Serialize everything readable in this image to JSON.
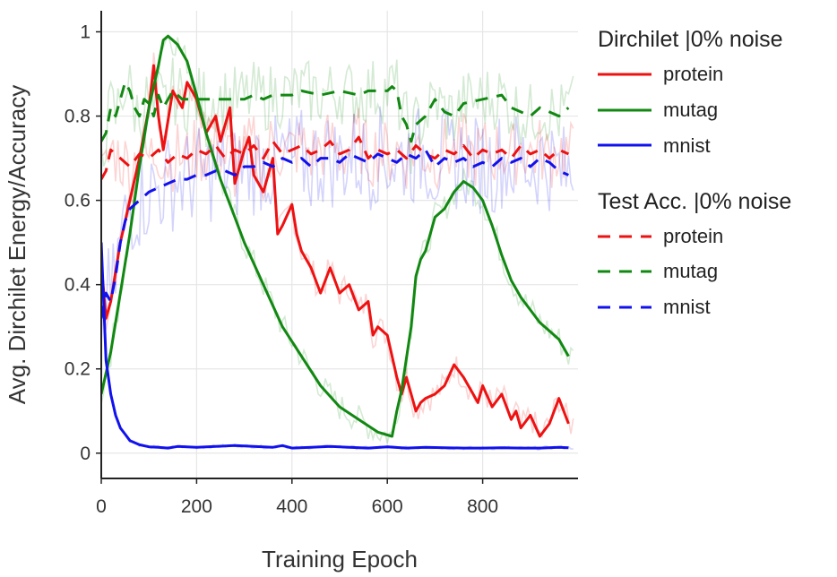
{
  "chart_data": {
    "type": "line",
    "xlabel": "Training Epoch",
    "ylabel": "Avg. Dirchilet Energy/Accuracy",
    "xlim": [
      0,
      1000
    ],
    "ylim": [
      -0.06,
      1.05
    ],
    "x_ticks": [
      0,
      200,
      400,
      600,
      800
    ],
    "y_ticks": [
      0,
      0.2,
      0.4,
      0.6,
      0.8,
      1
    ],
    "x_tick_labels": [
      "0",
      "200",
      "400",
      "600",
      "800"
    ],
    "y_tick_labels": [
      "0",
      "0.2",
      "0.4",
      "0.6",
      "0.8",
      "1"
    ],
    "grid": true,
    "colors": {
      "protein": "#ee1111",
      "mutag": "#118811",
      "mnist": "#1111ee"
    },
    "legend": {
      "position": "right",
      "groups": [
        {
          "title": "Dirchilet |0% noise",
          "style": "solid",
          "entries": [
            "protein",
            "mutag",
            "mnist"
          ]
        },
        {
          "title": "Test Acc. |0% noise",
          "style": "dashed",
          "entries": [
            "protein",
            "mutag",
            "mnist"
          ]
        }
      ]
    },
    "series": [
      {
        "name": "protein",
        "group": "Dirchilet |0% noise",
        "style": "solid",
        "x": [
          0,
          10,
          20,
          40,
          60,
          80,
          100,
          110,
          120,
          130,
          150,
          170,
          180,
          200,
          220,
          240,
          250,
          260,
          270,
          280,
          290,
          300,
          310,
          320,
          340,
          360,
          370,
          380,
          400,
          410,
          420,
          440,
          460,
          470,
          480,
          500,
          520,
          540,
          560,
          570,
          580,
          600,
          620,
          630,
          640,
          650,
          660,
          670,
          680,
          700,
          720,
          740,
          760,
          780,
          790,
          800,
          820,
          840,
          860,
          870,
          880,
          900,
          920,
          940,
          960,
          980
        ],
        "y": [
          0.45,
          0.32,
          0.36,
          0.5,
          0.6,
          0.7,
          0.82,
          0.92,
          0.8,
          0.72,
          0.86,
          0.82,
          0.88,
          0.84,
          0.76,
          0.8,
          0.74,
          0.78,
          0.82,
          0.64,
          0.68,
          0.72,
          0.75,
          0.66,
          0.62,
          0.7,
          0.52,
          0.54,
          0.59,
          0.52,
          0.48,
          0.44,
          0.38,
          0.41,
          0.44,
          0.38,
          0.4,
          0.34,
          0.36,
          0.28,
          0.3,
          0.28,
          0.18,
          0.14,
          0.18,
          0.14,
          0.1,
          0.12,
          0.13,
          0.14,
          0.16,
          0.21,
          0.18,
          0.14,
          0.12,
          0.16,
          0.11,
          0.14,
          0.08,
          0.1,
          0.06,
          0.09,
          0.04,
          0.07,
          0.13,
          0.07
        ]
      },
      {
        "name": "mutag",
        "group": "Dirchilet |0% noise",
        "style": "solid",
        "x": [
          0,
          20,
          40,
          60,
          80,
          100,
          120,
          130,
          140,
          150,
          160,
          180,
          200,
          220,
          250,
          280,
          300,
          340,
          380,
          420,
          460,
          500,
          540,
          580,
          610,
          620,
          630,
          650,
          660,
          670,
          680,
          700,
          720,
          740,
          760,
          780,
          800,
          820,
          840,
          860,
          880,
          900,
          920,
          940,
          960,
          980
        ],
        "y": [
          0.14,
          0.24,
          0.38,
          0.52,
          0.68,
          0.82,
          0.92,
          0.98,
          0.99,
          0.98,
          0.97,
          0.93,
          0.85,
          0.76,
          0.65,
          0.56,
          0.5,
          0.4,
          0.3,
          0.23,
          0.16,
          0.11,
          0.08,
          0.05,
          0.04,
          0.1,
          0.15,
          0.3,
          0.42,
          0.46,
          0.48,
          0.56,
          0.58,
          0.62,
          0.645,
          0.63,
          0.6,
          0.54,
          0.47,
          0.41,
          0.37,
          0.34,
          0.31,
          0.29,
          0.27,
          0.23
        ]
      },
      {
        "name": "mnist",
        "group": "Dirchilet |0% noise",
        "style": "solid",
        "x": [
          0,
          10,
          20,
          30,
          40,
          50,
          60,
          80,
          100,
          120,
          140,
          160,
          180,
          200,
          240,
          280,
          320,
          360,
          380,
          400,
          440,
          480,
          520,
          560,
          600,
          640,
          680,
          720,
          760,
          800,
          840,
          880,
          920,
          960,
          980
        ],
        "y": [
          0.5,
          0.22,
          0.14,
          0.09,
          0.06,
          0.045,
          0.03,
          0.02,
          0.015,
          0.014,
          0.012,
          0.016,
          0.015,
          0.014,
          0.016,
          0.018,
          0.016,
          0.014,
          0.018,
          0.012,
          0.014,
          0.016,
          0.014,
          0.012,
          0.015,
          0.012,
          0.014,
          0.013,
          0.012,
          0.012,
          0.013,
          0.012,
          0.012,
          0.014,
          0.013
        ]
      },
      {
        "name": "protein",
        "group": "Test Acc. |0% noise",
        "style": "dashed",
        "x": [
          0,
          10,
          20,
          40,
          60,
          80,
          100,
          120,
          140,
          160,
          180,
          200,
          220,
          240,
          260,
          280,
          300,
          320,
          340,
          360,
          380,
          400,
          420,
          440,
          460,
          480,
          500,
          520,
          540,
          560,
          580,
          600,
          620,
          640,
          660,
          680,
          700,
          720,
          740,
          760,
          780,
          800,
          820,
          840,
          860,
          880,
          900,
          920,
          940,
          960,
          980
        ],
        "y": [
          0.65,
          0.67,
          0.72,
          0.7,
          0.68,
          0.71,
          0.7,
          0.72,
          0.69,
          0.71,
          0.7,
          0.72,
          0.71,
          0.73,
          0.7,
          0.72,
          0.71,
          0.73,
          0.7,
          0.74,
          0.71,
          0.72,
          0.73,
          0.71,
          0.72,
          0.74,
          0.71,
          0.72,
          0.75,
          0.7,
          0.72,
          0.71,
          0.72,
          0.7,
          0.73,
          0.71,
          0.7,
          0.72,
          0.71,
          0.73,
          0.7,
          0.72,
          0.71,
          0.72,
          0.7,
          0.73,
          0.71,
          0.72,
          0.7,
          0.72,
          0.71
        ]
      },
      {
        "name": "mutag",
        "group": "Test Acc. |0% noise",
        "style": "dashed",
        "x": [
          0,
          10,
          20,
          30,
          40,
          50,
          60,
          70,
          80,
          90,
          100,
          110,
          120,
          130,
          140,
          150,
          160,
          170,
          200,
          260,
          300,
          320,
          340,
          360,
          400,
          420,
          460,
          500,
          540,
          560,
          600,
          610,
          620,
          630,
          640,
          650,
          660,
          680,
          700,
          720,
          740,
          760,
          800,
          840,
          860,
          880,
          900,
          920,
          960,
          980
        ],
        "y": [
          0.74,
          0.76,
          0.82,
          0.8,
          0.84,
          0.88,
          0.86,
          0.82,
          0.8,
          0.84,
          0.83,
          0.8,
          0.85,
          0.82,
          0.84,
          0.86,
          0.85,
          0.84,
          0.84,
          0.84,
          0.84,
          0.85,
          0.84,
          0.85,
          0.85,
          0.86,
          0.85,
          0.86,
          0.85,
          0.86,
          0.86,
          0.87,
          0.86,
          0.8,
          0.78,
          0.74,
          0.78,
          0.8,
          0.84,
          0.81,
          0.8,
          0.83,
          0.84,
          0.85,
          0.82,
          0.81,
          0.8,
          0.82,
          0.8,
          0.82
        ]
      },
      {
        "name": "mnist",
        "group": "Test Acc. |0% noise",
        "style": "dashed",
        "x": [
          0,
          10,
          20,
          30,
          40,
          50,
          60,
          80,
          100,
          120,
          140,
          160,
          180,
          200,
          220,
          240,
          260,
          280,
          300,
          320,
          340,
          360,
          380,
          400,
          420,
          440,
          460,
          480,
          500,
          520,
          540,
          560,
          580,
          600,
          620,
          640,
          660,
          680,
          700,
          720,
          740,
          760,
          780,
          800,
          820,
          840,
          860,
          880,
          900,
          920,
          940,
          960,
          980
        ],
        "y": [
          0.32,
          0.38,
          0.36,
          0.42,
          0.5,
          0.55,
          0.58,
          0.6,
          0.62,
          0.63,
          0.64,
          0.65,
          0.65,
          0.66,
          0.66,
          0.67,
          0.67,
          0.66,
          0.68,
          0.68,
          0.69,
          0.68,
          0.7,
          0.69,
          0.7,
          0.68,
          0.7,
          0.7,
          0.69,
          0.71,
          0.7,
          0.69,
          0.71,
          0.7,
          0.69,
          0.71,
          0.7,
          0.72,
          0.68,
          0.7,
          0.69,
          0.7,
          0.68,
          0.69,
          0.68,
          0.7,
          0.69,
          0.7,
          0.68,
          0.7,
          0.69,
          0.67,
          0.66
        ]
      }
    ]
  }
}
